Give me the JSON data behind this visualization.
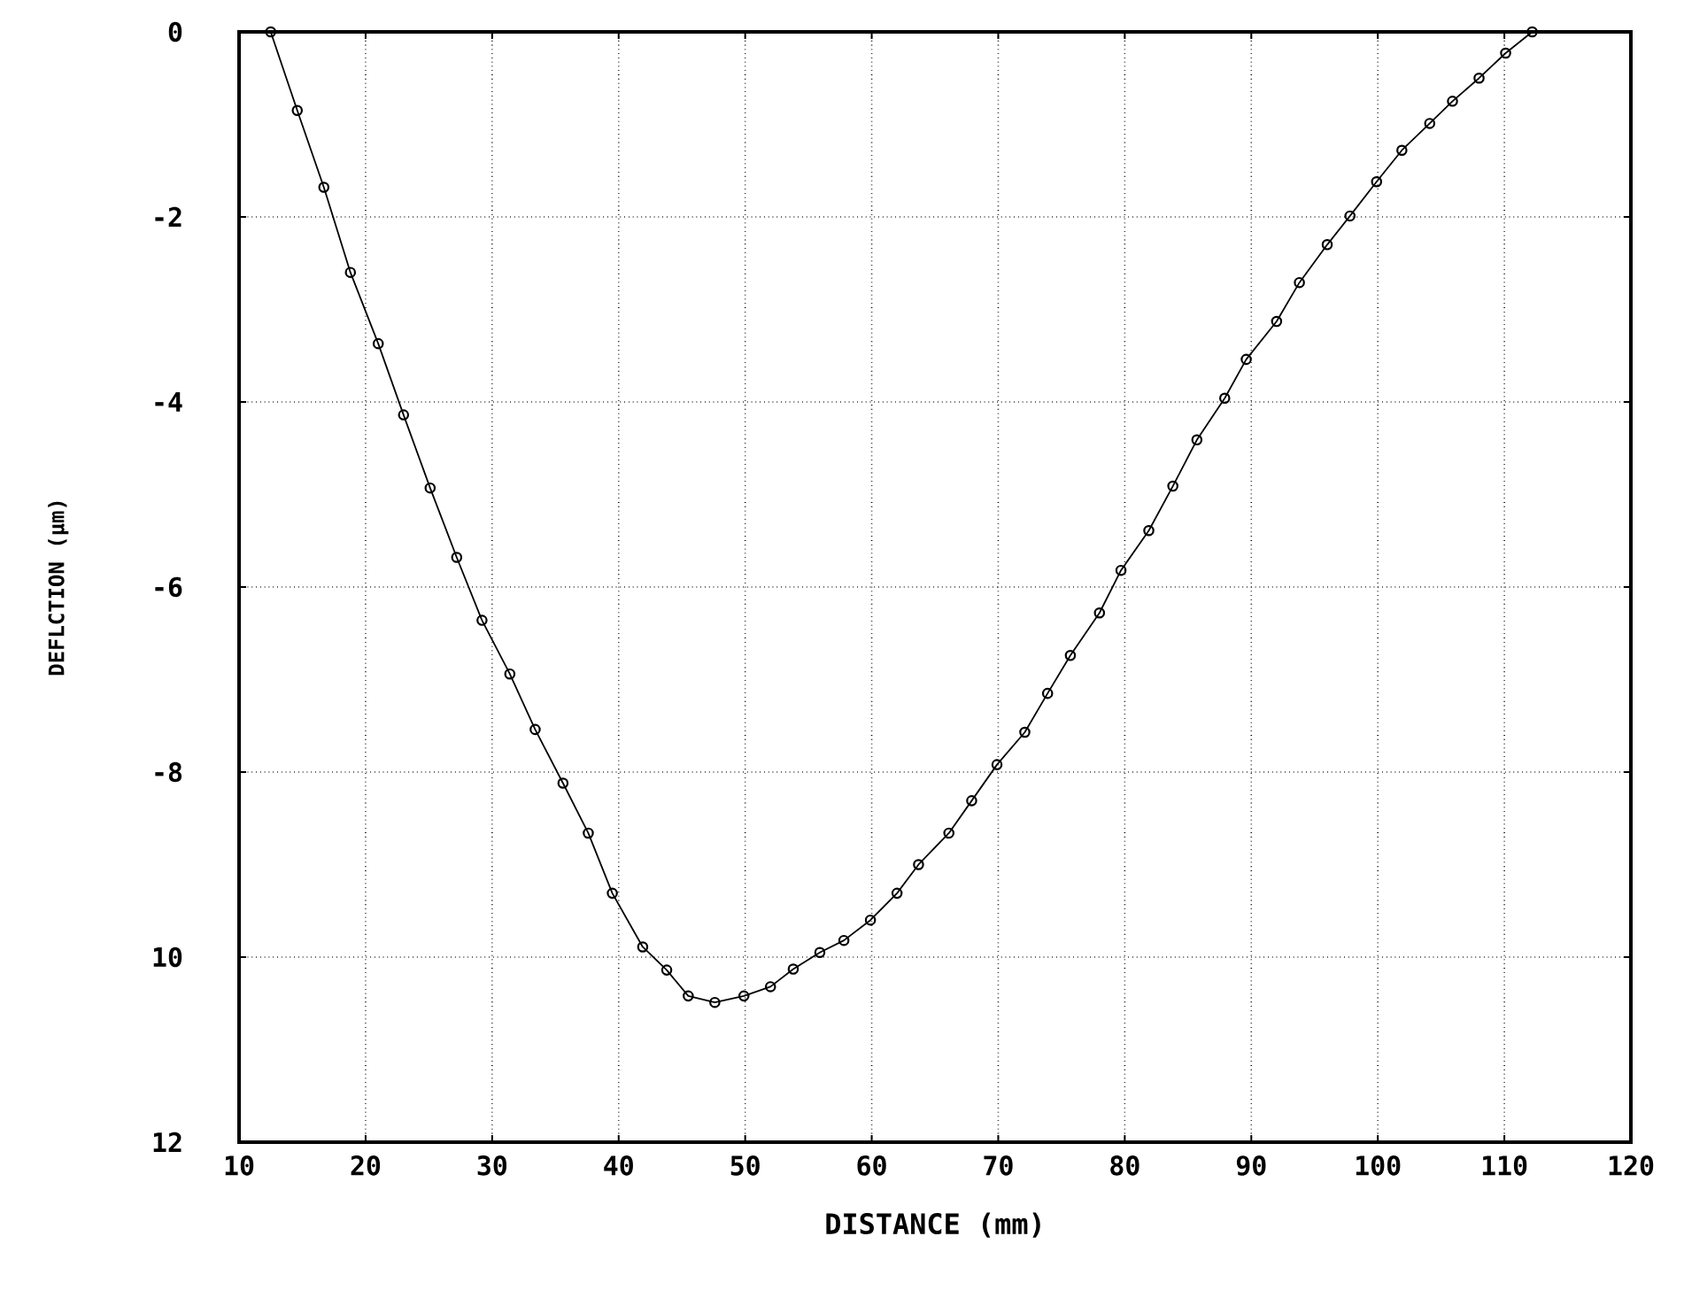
{
  "chart_data": {
    "type": "line",
    "xlabel": "DISTANCE (mm)",
    "ylabel": "DEFLCTION (μm)",
    "x": [
      12.5,
      14.6,
      16.7,
      18.8,
      21.0,
      23.0,
      25.1,
      27.2,
      29.2,
      31.4,
      33.4,
      35.6,
      37.6,
      39.5,
      41.9,
      43.8,
      45.5,
      47.6,
      49.9,
      52.0,
      53.8,
      55.9,
      57.8,
      59.9,
      62.0,
      63.7,
      66.1,
      67.9,
      69.9,
      72.1,
      73.9,
      75.7,
      78.0,
      79.7,
      81.9,
      83.8,
      85.7,
      87.9,
      89.6,
      92.0,
      93.8,
      96.0,
      97.8,
      99.9,
      101.9,
      104.1,
      105.9,
      108.0,
      110.1,
      112.2
    ],
    "series": [
      {
        "color": "#000000",
        "values": [
          0,
          -0.85,
          -1.68,
          -2.6,
          -3.37,
          -4.14,
          -4.93,
          -5.68,
          -6.36,
          -6.94,
          -7.54,
          -8.12,
          -8.66,
          -9.31,
          -9.89,
          -10.14,
          -10.42,
          -10.49,
          -10.42,
          -10.32,
          -10.13,
          -9.95,
          -9.82,
          -9.6,
          -9.31,
          -9.0,
          -8.66,
          -8.31,
          -7.92,
          -7.57,
          -7.15,
          -6.74,
          -6.28,
          -5.82,
          -5.39,
          -4.91,
          -4.41,
          -3.96,
          -3.54,
          -3.13,
          -2.71,
          -2.3,
          -1.99,
          -1.62,
          -1.28,
          -0.99,
          -0.75,
          -0.5,
          -0.23,
          0
        ]
      }
    ],
    "xlim": [
      10,
      120
    ],
    "xticks": [
      10,
      20,
      30,
      40,
      50,
      60,
      70,
      80,
      90,
      100,
      110,
      120
    ],
    "ylim": [
      -12,
      0
    ],
    "yticks": [
      {
        "value": -12,
        "label": "12"
      },
      {
        "value": -10,
        "label": "10"
      },
      -8,
      -6,
      -4,
      -2,
      0
    ],
    "grid": true,
    "marker": "circle",
    "line_style": "solid"
  }
}
